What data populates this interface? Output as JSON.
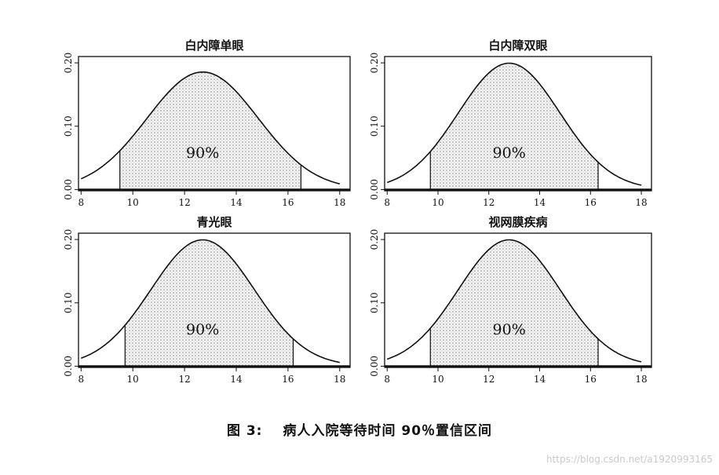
{
  "chart_data": [
    {
      "type": "area",
      "title": "白内障单眼",
      "x_ticks": [
        "8",
        "10",
        "12",
        "14",
        "16",
        "18"
      ],
      "y_ticks": [
        "0.00",
        "0.10",
        "0.20"
      ],
      "xlim": [
        7.9,
        18.4
      ],
      "ylim": [
        -0.002,
        0.21
      ],
      "x_range": [
        8.0,
        18.0
      ],
      "mean": 12.7,
      "sd": 2.15,
      "interval": [
        9.5,
        16.5
      ],
      "interval_label": "90%"
    },
    {
      "type": "area",
      "title": "白内障双眼",
      "x_ticks": [
        "8",
        "10",
        "12",
        "14",
        "16",
        "18"
      ],
      "y_ticks": [
        "0.00",
        "0.10",
        "0.20"
      ],
      "xlim": [
        7.9,
        18.4
      ],
      "ylim": [
        -0.002,
        0.21
      ],
      "x_range": [
        8.0,
        18.0
      ],
      "mean": 12.8,
      "sd": 2.0,
      "interval": [
        9.7,
        16.3
      ],
      "interval_label": "90%"
    },
    {
      "type": "area",
      "title": "青光眼",
      "x_ticks": [
        "8",
        "10",
        "12",
        "14",
        "16",
        "18"
      ],
      "y_ticks": [
        "0.00",
        "0.10",
        "0.20"
      ],
      "xlim": [
        7.9,
        18.4
      ],
      "ylim": [
        -0.002,
        0.21
      ],
      "x_range": [
        8.0,
        18.0
      ],
      "mean": 12.7,
      "sd": 2.0,
      "interval": [
        9.7,
        16.2
      ],
      "interval_label": "90%"
    },
    {
      "type": "area",
      "title": "视网膜疾病",
      "x_ticks": [
        "8",
        "10",
        "12",
        "14",
        "16",
        "18"
      ],
      "y_ticks": [
        "0.00",
        "0.10",
        "0.20"
      ],
      "xlim": [
        7.9,
        18.4
      ],
      "ylim": [
        -0.002,
        0.21
      ],
      "x_range": [
        8.0,
        18.0
      ],
      "mean": 12.8,
      "sd": 2.0,
      "interval": [
        9.7,
        16.3
      ],
      "interval_label": "90%"
    }
  ],
  "caption": {
    "number": "图 3:",
    "text": "病人入院等待时间 90％置信区间"
  },
  "watermark": "https://blog.csdn.net/a1920993165"
}
